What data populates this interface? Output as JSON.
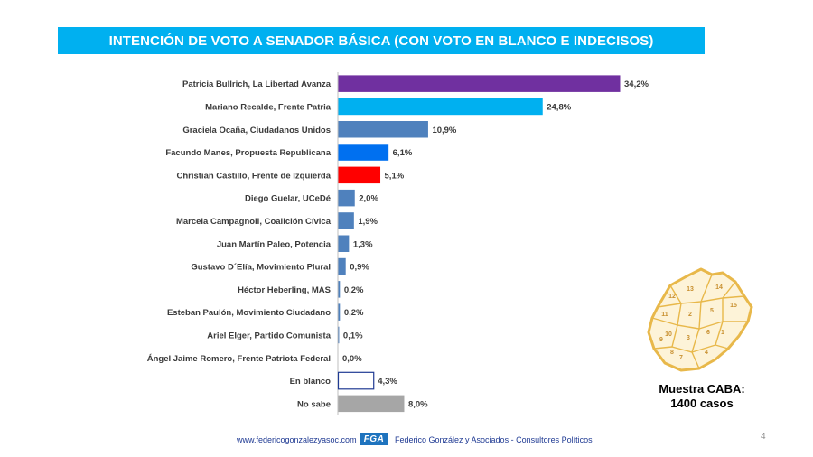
{
  "title": "INTENCIÓN DE VOTO A SENADOR BÁSICA (CON VOTO EN BLANCO E INDECISOS)",
  "colors": {
    "banner": "#00b0f0",
    "purple": "#7030a0",
    "cyan": "#00b0f0",
    "steel": "#4f81bd",
    "blue": "#0070f0",
    "red": "#ff0000",
    "gray": "#a6a6a6",
    "map_fill": "#fdf3d8",
    "map_line": "#e8b84a"
  },
  "chart_data": {
    "type": "bar",
    "orientation": "horizontal",
    "title": "INTENCIÓN DE VOTO A SENADOR BÁSICA (CON VOTO EN BLANCO E INDECISOS)",
    "xlim": [
      0,
      34.2
    ],
    "grid": false,
    "unit": "%",
    "categories": [
      "Patricia Bullrich, La Libertad Avanza",
      "Mariano Recalde, Frente Patria",
      "Graciela Ocaña, Ciudadanos Unidos",
      "Facundo Manes, Propuesta Republicana",
      "Christian Castillo, Frente de Izquierda",
      "Diego Guelar, UCeDé",
      "Marcela Campagnoli, Coalición Cívica",
      "Juan Martín Paleo, Potencia",
      "Gustavo D´Elía, Movimiento Plural",
      "Héctor Heberling, MAS",
      "Esteban Paulón, Movimiento Ciudadano",
      "Ariel Elger, Partido Comunista",
      "Ángel Jaime Romero, Frente Patriota Federal",
      "En blanco",
      "No sabe"
    ],
    "values": [
      34.2,
      24.8,
      10.9,
      6.1,
      5.1,
      2.0,
      1.9,
      1.3,
      0.9,
      0.2,
      0.2,
      0.1,
      0.0,
      4.3,
      8.0
    ],
    "value_labels": [
      "34,2%",
      "24,8%",
      "10,9%",
      "6,1%",
      "5,1%",
      "2,0%",
      "1,9%",
      "1,3%",
      "0,9%",
      "0,2%",
      "0,2%",
      "0,1%",
      "0,0%",
      "4,3%",
      "8,0%"
    ],
    "bar_colors": [
      "#7030a0",
      "#00b0f0",
      "#4f81bd",
      "#0070f0",
      "#ff0000",
      "#4f81bd",
      "#4f81bd",
      "#4f81bd",
      "#4f81bd",
      "#4f81bd",
      "#4f81bd",
      "#4f81bd",
      "#4f81bd",
      "#ffffff",
      "#a6a6a6"
    ],
    "bar_outline": [
      false,
      false,
      false,
      false,
      false,
      false,
      false,
      false,
      false,
      false,
      false,
      false,
      false,
      true,
      false
    ]
  },
  "map": {
    "district_numbers": [
      "13",
      "12",
      "14",
      "11",
      "15",
      "2",
      "10",
      "5",
      "3",
      "9",
      "7",
      "1",
      "4",
      "8",
      "6"
    ]
  },
  "sample": {
    "line1": "Muestra CABA:",
    "line2": "1400 casos"
  },
  "footer": {
    "url": "www.federicogonzalezyasoc.com",
    "logo_text": "FGA",
    "firm": "Federico González y Asociados - Consultores Políticos"
  },
  "page_number": "4"
}
